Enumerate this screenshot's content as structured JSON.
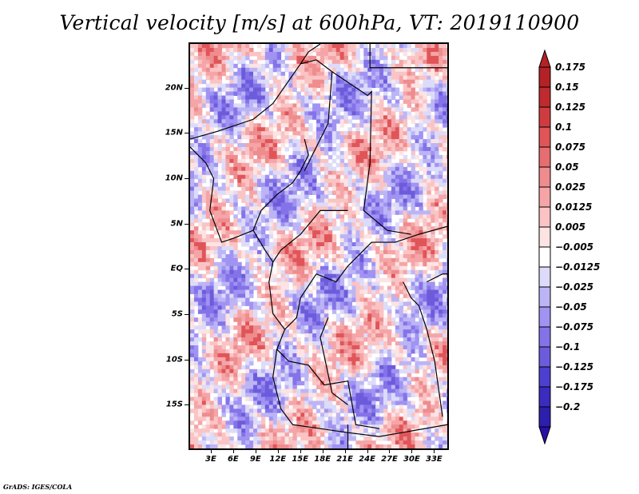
{
  "title": "Vertical velocity [m/s] at 600hPa, VT: 2019110900",
  "footer": "GrADS: IGES/COLA",
  "map": {
    "variable": "Vertical velocity",
    "units": "m/s",
    "level": "600hPa",
    "valid_time": "2019110900",
    "lon_range": [
      0,
      35
    ],
    "lat_range": [
      -20,
      25
    ],
    "y_axis_labels": [
      {
        "label": "20N",
        "lat": 20
      },
      {
        "label": "15N",
        "lat": 15
      },
      {
        "label": "10N",
        "lat": 10
      },
      {
        "label": "5N",
        "lat": 5
      },
      {
        "label": "EQ",
        "lat": 0
      },
      {
        "label": "5S",
        "lat": -5
      },
      {
        "label": "10S",
        "lat": -10
      },
      {
        "label": "15S",
        "lat": -15
      }
    ],
    "x_axis_labels": [
      {
        "label": "3E",
        "lon": 3
      },
      {
        "label": "6E",
        "lon": 6
      },
      {
        "label": "9E",
        "lon": 9
      },
      {
        "label": "12E",
        "lon": 12
      },
      {
        "label": "15E",
        "lon": 15
      },
      {
        "label": "18E",
        "lon": 18
      },
      {
        "label": "21E",
        "lon": 21
      },
      {
        "label": "24E",
        "lon": 24
      },
      {
        "label": "27E",
        "lon": 27
      },
      {
        "label": "30E",
        "lon": 30
      },
      {
        "label": "33E",
        "lon": 33
      }
    ]
  },
  "colorbar": {
    "labels": [
      "0.175",
      "0.15",
      "0.125",
      "0.1",
      "0.075",
      "0.05",
      "0.025",
      "0.0125",
      "0.005",
      "-0.005",
      "-0.0125",
      "-0.025",
      "-0.05",
      "-0.075",
      "-0.1",
      "-0.125",
      "-0.175",
      "-0.2"
    ],
    "colors": [
      "#b22226",
      "#bf2a2e",
      "#cf3c40",
      "#e05558",
      "#e66e70",
      "#ee8c8e",
      "#f5a5a7",
      "#fac4c5",
      "#fde4e4",
      "#ffffff",
      "#dcdcfa",
      "#bcb5f5",
      "#a093f2",
      "#8473e8",
      "#6c5cdc",
      "#4d3fcf",
      "#3b2bbf",
      "#2c1fae"
    ],
    "top_arrow_color": "#b22226",
    "bottom_arrow_color": "#2a0ea8"
  }
}
